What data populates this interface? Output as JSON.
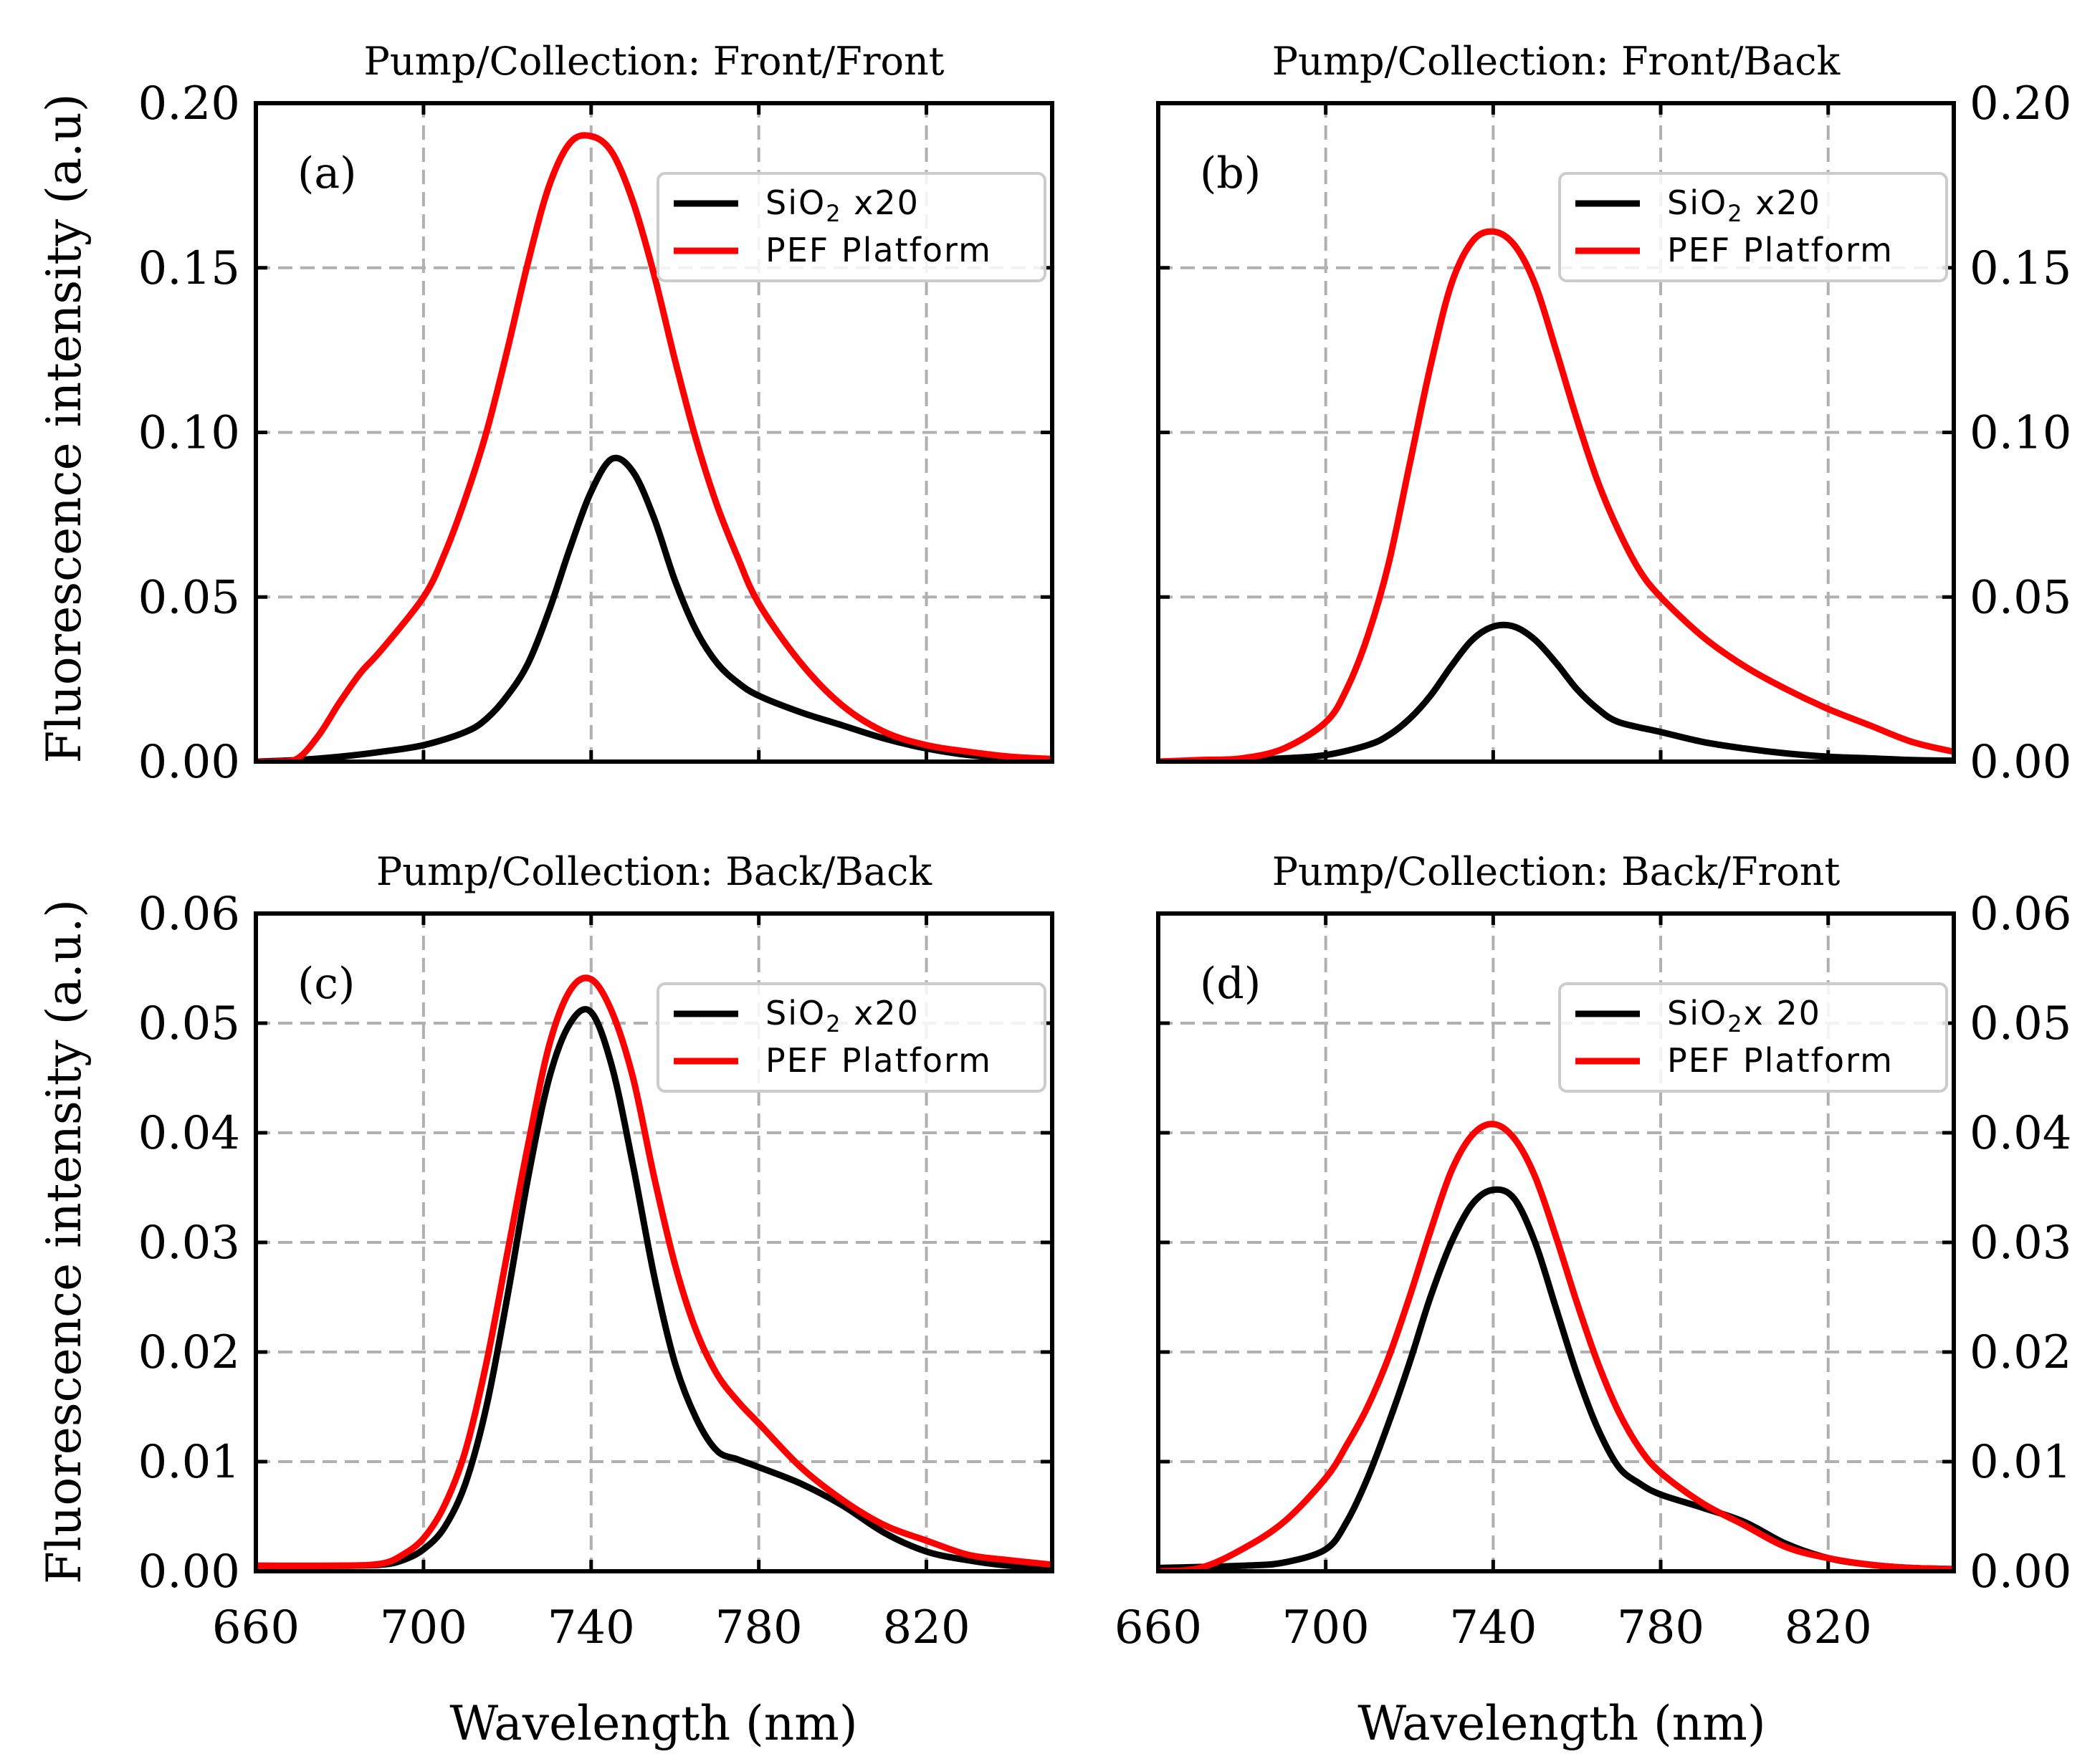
{
  "figure": {
    "ylabel_top": "Fluorescence intensity (a.u)",
    "ylabel_bottom": "Fluorescence intensity (a.u.)",
    "xlabel": "Wavelength (nm)"
  },
  "colors": {
    "sio2": "#000000",
    "pef": "#ff0000",
    "grid": "#b0b0b0"
  },
  "chart_data": [
    {
      "type": "line",
      "panel": "(a)",
      "title": "Pump/Collection: Front/Front",
      "xlabel": "",
      "ylabel": "Fluorescence intensity (a.u)",
      "xlim": [
        660,
        850
      ],
      "ylim": [
        0,
        0.2
      ],
      "xticks": [
        "660",
        "700",
        "740",
        "780",
        "820"
      ],
      "yticks": [
        "0.00",
        "0.05",
        "0.10",
        "0.15",
        "0.20"
      ],
      "ytick_side": "left",
      "grid": true,
      "legend_position": "top-right",
      "series": [
        {
          "name": "SiO₂ x20",
          "color": "#000000",
          "x": [
            660,
            670,
            680,
            690,
            700,
            710,
            715,
            720,
            725,
            730,
            735,
            740,
            745,
            750,
            755,
            760,
            765,
            770,
            775,
            780,
            790,
            800,
            810,
            820,
            830,
            840,
            850
          ],
          "y": [
            0,
            0.0005,
            0.0015,
            0.003,
            0.005,
            0.009,
            0.013,
            0.02,
            0.03,
            0.046,
            0.065,
            0.082,
            0.092,
            0.088,
            0.074,
            0.055,
            0.04,
            0.03,
            0.024,
            0.02,
            0.015,
            0.011,
            0.007,
            0.004,
            0.002,
            0.001,
            0.0005
          ]
        },
        {
          "name": "PEF Platform",
          "color": "#ff0000",
          "x": [
            660,
            665,
            670,
            675,
            680,
            685,
            690,
            700,
            705,
            710,
            715,
            720,
            725,
            730,
            735,
            740,
            745,
            750,
            755,
            760,
            765,
            770,
            775,
            780,
            790,
            800,
            810,
            820,
            830,
            840,
            850
          ],
          "y": [
            0,
            0,
            0.001,
            0.008,
            0.018,
            0.027,
            0.034,
            0.05,
            0.063,
            0.08,
            0.1,
            0.125,
            0.152,
            0.175,
            0.188,
            0.19,
            0.185,
            0.17,
            0.148,
            0.122,
            0.098,
            0.078,
            0.062,
            0.048,
            0.03,
            0.017,
            0.009,
            0.005,
            0.003,
            0.0015,
            0.0008
          ]
        }
      ]
    },
    {
      "type": "line",
      "panel": "(b)",
      "title": "Pump/Collection: Front/Back",
      "xlabel": "",
      "ylabel": "",
      "xlim": [
        660,
        850
      ],
      "ylim": [
        0,
        0.2
      ],
      "xticks": [
        "660",
        "700",
        "740",
        "780",
        "820"
      ],
      "yticks": [
        "0.00",
        "0.05",
        "0.10",
        "0.15",
        "0.20"
      ],
      "ytick_side": "right",
      "grid": true,
      "legend_position": "top-right",
      "series": [
        {
          "name": "SiO₂ x20",
          "color": "#000000",
          "x": [
            660,
            680,
            690,
            700,
            710,
            715,
            720,
            725,
            730,
            735,
            740,
            745,
            750,
            755,
            760,
            765,
            770,
            780,
            790,
            800,
            810,
            820,
            830,
            840,
            850
          ],
          "y": [
            0,
            0.0005,
            0.001,
            0.002,
            0.005,
            0.008,
            0.013,
            0.02,
            0.029,
            0.037,
            0.041,
            0.041,
            0.037,
            0.03,
            0.022,
            0.016,
            0.012,
            0.009,
            0.006,
            0.004,
            0.0025,
            0.0015,
            0.001,
            0.0005,
            0.0003
          ]
        },
        {
          "name": "PEF Platform",
          "color": "#ff0000",
          "x": [
            660,
            670,
            680,
            690,
            700,
            705,
            710,
            715,
            720,
            725,
            730,
            735,
            740,
            745,
            750,
            755,
            760,
            765,
            770,
            775,
            780,
            790,
            800,
            810,
            820,
            830,
            840,
            850
          ],
          "y": [
            0,
            0.0005,
            0.001,
            0.004,
            0.012,
            0.022,
            0.038,
            0.06,
            0.09,
            0.12,
            0.145,
            0.158,
            0.161,
            0.157,
            0.145,
            0.125,
            0.104,
            0.085,
            0.07,
            0.058,
            0.05,
            0.038,
            0.029,
            0.022,
            0.016,
            0.011,
            0.006,
            0.003
          ]
        }
      ]
    },
    {
      "type": "line",
      "panel": "(c)",
      "title": "Pump/Collection: Back/Back",
      "xlabel": "Wavelength (nm)",
      "ylabel": "Fluorescence intensity (a.u.)",
      "xlim": [
        660,
        850
      ],
      "ylim": [
        0,
        0.06
      ],
      "xticks": [
        "660",
        "700",
        "740",
        "780",
        "820"
      ],
      "yticks": [
        "0.00",
        "0.01",
        "0.02",
        "0.03",
        "0.04",
        "0.05",
        "0.06"
      ],
      "ytick_side": "left",
      "grid": true,
      "legend_position": "top-right",
      "series": [
        {
          "name": "SiO₂ x20",
          "color": "#000000",
          "x": [
            660,
            680,
            690,
            695,
            700,
            705,
            710,
            715,
            720,
            725,
            730,
            735,
            740,
            745,
            750,
            755,
            760,
            765,
            770,
            775,
            780,
            790,
            800,
            810,
            820,
            830,
            840,
            850
          ],
          "y": [
            0.0005,
            0.0005,
            0.0006,
            0.001,
            0.002,
            0.004,
            0.008,
            0.015,
            0.025,
            0.036,
            0.045,
            0.05,
            0.051,
            0.046,
            0.037,
            0.027,
            0.019,
            0.014,
            0.011,
            0.0102,
            0.0095,
            0.008,
            0.006,
            0.0035,
            0.0018,
            0.001,
            0.0005,
            0.0003
          ]
        },
        {
          "name": "PEF Platform",
          "color": "#ff0000",
          "x": [
            660,
            680,
            690,
            695,
            700,
            705,
            710,
            715,
            720,
            725,
            730,
            735,
            740,
            745,
            750,
            755,
            760,
            765,
            770,
            775,
            780,
            790,
            800,
            810,
            820,
            830,
            840,
            850
          ],
          "y": [
            0.0005,
            0.0005,
            0.0007,
            0.0015,
            0.003,
            0.006,
            0.011,
            0.019,
            0.029,
            0.039,
            0.048,
            0.053,
            0.054,
            0.051,
            0.045,
            0.036,
            0.028,
            0.022,
            0.018,
            0.0155,
            0.0135,
            0.0095,
            0.0065,
            0.0042,
            0.0028,
            0.0015,
            0.001,
            0.0006
          ]
        }
      ]
    },
    {
      "type": "line",
      "panel": "(d)",
      "title": "Pump/Collection: Back/Front",
      "xlabel": "Wavelength (nm)",
      "ylabel": "",
      "xlim": [
        660,
        850
      ],
      "ylim": [
        0,
        0.06
      ],
      "xticks": [
        "660",
        "700",
        "740",
        "780",
        "820"
      ],
      "yticks": [
        "0.00",
        "0.01",
        "0.02",
        "0.03",
        "0.04",
        "0.05",
        "0.06"
      ],
      "ytick_side": "right",
      "grid": true,
      "legend_position": "top-right",
      "series": [
        {
          "name": "SiO₂x 20",
          "color": "#000000",
          "x": [
            660,
            680,
            690,
            700,
            705,
            710,
            715,
            720,
            725,
            730,
            735,
            740,
            745,
            750,
            755,
            760,
            765,
            770,
            775,
            780,
            790,
            800,
            810,
            820,
            830,
            840,
            850
          ],
          "y": [
            0.0003,
            0.0005,
            0.0008,
            0.002,
            0.0045,
            0.0085,
            0.0135,
            0.019,
            0.025,
            0.03,
            0.0335,
            0.0348,
            0.034,
            0.03,
            0.024,
            0.018,
            0.013,
            0.0095,
            0.008,
            0.007,
            0.0058,
            0.0045,
            0.0025,
            0.0012,
            0.0006,
            0.0003,
            0.0002
          ]
        },
        {
          "name": "PEF Platform",
          "color": "#ff0000",
          "x": [
            660,
            670,
            680,
            690,
            700,
            705,
            710,
            715,
            720,
            725,
            730,
            735,
            740,
            745,
            750,
            755,
            760,
            765,
            770,
            775,
            780,
            790,
            800,
            810,
            820,
            830,
            840,
            850
          ],
          "y": [
            0,
            0.0003,
            0.002,
            0.0045,
            0.0085,
            0.0115,
            0.015,
            0.0195,
            0.025,
            0.031,
            0.0365,
            0.0398,
            0.0408,
            0.0395,
            0.036,
            0.0305,
            0.0245,
            0.019,
            0.0145,
            0.0112,
            0.009,
            0.0062,
            0.0042,
            0.0022,
            0.0012,
            0.0006,
            0.0003,
            0.0002
          ]
        }
      ]
    }
  ]
}
